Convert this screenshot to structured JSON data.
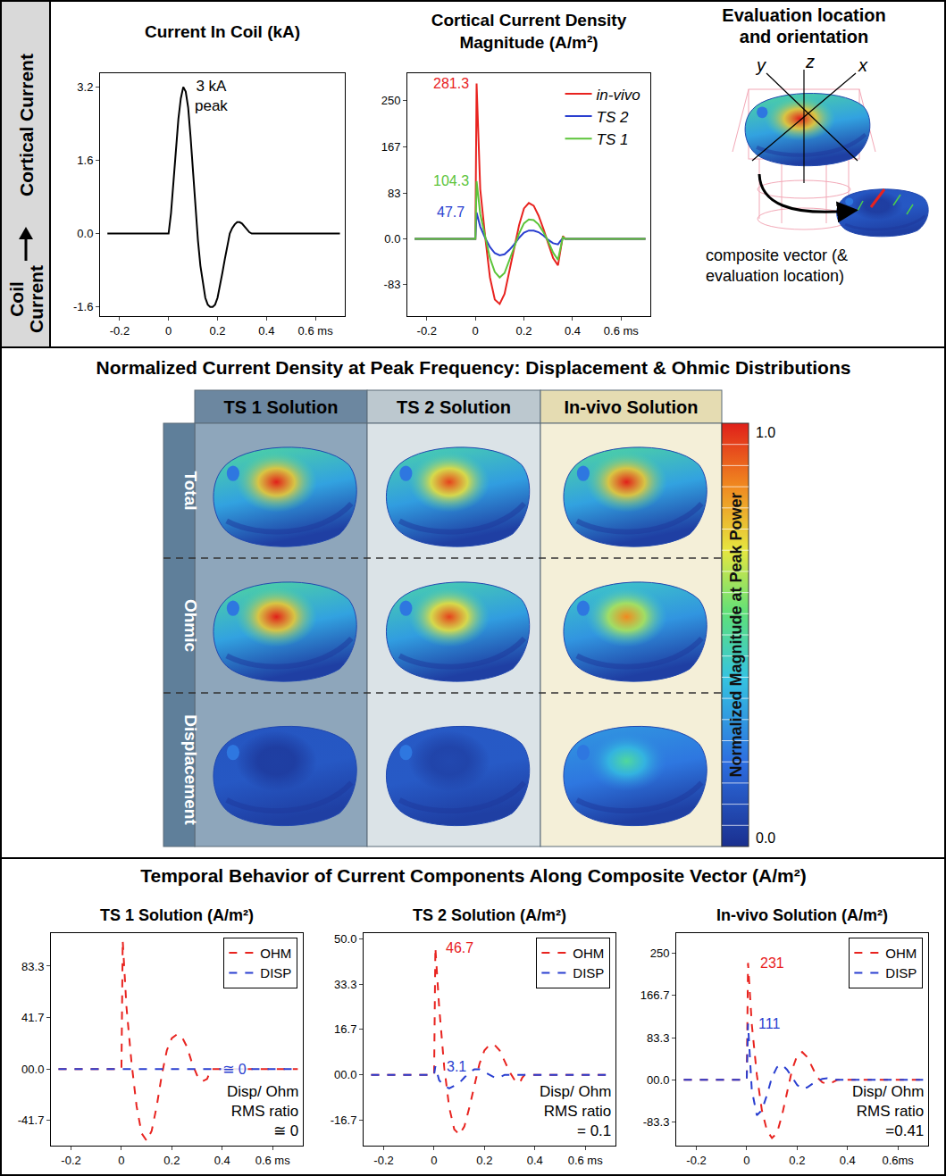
{
  "side_label": {
    "bottom": "Coil Current",
    "top": "Cortical Current"
  },
  "chart_data": [
    {
      "type": "line",
      "title": "Current In Coil (kA)",
      "x": [
        -0.25,
        0,
        0.01,
        0.02,
        0.03,
        0.04,
        0.05,
        0.06,
        0.07,
        0.08,
        0.09,
        0.1,
        0.11,
        0.12,
        0.13,
        0.14,
        0.15,
        0.16,
        0.17,
        0.18,
        0.19,
        0.2,
        0.21,
        0.22,
        0.23,
        0.24,
        0.25,
        0.26,
        0.27,
        0.28,
        0.29,
        0.3,
        0.31,
        0.32,
        0.33,
        0.34,
        0.7
      ],
      "values": [
        0,
        0,
        0.45,
        1.1,
        1.8,
        2.5,
        2.95,
        3.2,
        3.1,
        2.75,
        2.1,
        1.3,
        0.55,
        -0.15,
        -0.7,
        -1.1,
        -1.4,
        -1.55,
        -1.6,
        -1.6,
        -1.55,
        -1.4,
        -1.15,
        -0.85,
        -0.55,
        -0.25,
        0.0,
        0.12,
        0.2,
        0.25,
        0.25,
        0.22,
        0.15,
        0.08,
        0.03,
        0,
        0
      ],
      "color": "#000000",
      "xlim": [
        -0.28,
        0.72
      ],
      "ylim": [
        -1.8,
        3.5
      ],
      "xticks": [
        -0.2,
        0,
        0.2,
        0.4,
        {
          "value": 0.6,
          "label": "0.6 ms"
        }
      ],
      "yticks": [
        -1.6,
        {
          "value": 0,
          "label": "0.0"
        },
        1.6,
        3.2
      ],
      "annotations": [
        {
          "text": "3 kA peak",
          "x": 0.1,
          "y": 3,
          "color": "#000000"
        }
      ]
    },
    {
      "type": "line",
      "title": "Cortical Current Density Magnitude (A/m²)",
      "x": [
        -0.25,
        0,
        0.005,
        0.02,
        0.04,
        0.06,
        0.08,
        0.1,
        0.12,
        0.14,
        0.16,
        0.18,
        0.2,
        0.22,
        0.24,
        0.26,
        0.28,
        0.3,
        0.32,
        0.34,
        0.35,
        0.36,
        0.37,
        0.7
      ],
      "series": [
        {
          "name": "in-vivo",
          "color": "#e8231f",
          "line_style": "solid",
          "values": [
            0,
            0,
            281.3,
            90,
            5,
            -70,
            -110,
            -118,
            -100,
            -60,
            -15,
            25,
            55,
            65,
            60,
            42,
            18,
            -10,
            -35,
            -48,
            -20,
            5,
            0,
            0
          ]
        },
        {
          "name": "TS 2",
          "color": "#2a3fd0",
          "line_style": "solid",
          "values": [
            0,
            0,
            47.7,
            22,
            2,
            -15,
            -26,
            -30,
            -28,
            -20,
            -10,
            2,
            11,
            15,
            15,
            12,
            6,
            -2,
            -8,
            -10,
            -4,
            1,
            0,
            0
          ]
        },
        {
          "name": "TS 1",
          "color": "#5cc43a",
          "line_style": "solid",
          "values": [
            0,
            0,
            104.3,
            45,
            5,
            -35,
            -60,
            -70,
            -62,
            -40,
            -15,
            10,
            28,
            35,
            34,
            26,
            12,
            -5,
            -25,
            -38,
            -15,
            3,
            0,
            0
          ]
        }
      ],
      "legend": "top right",
      "xlim": [
        -0.28,
        0.72
      ],
      "ylim": [
        -140,
        300
      ],
      "xticks": [
        -0.2,
        0,
        0.2,
        0.4,
        {
          "value": 0.6,
          "label": "0.6 ms"
        }
      ],
      "yticks": [
        -83,
        {
          "value": 0,
          "label": "0.0"
        },
        83,
        167,
        250
      ],
      "annotations": [
        {
          "text": "281.3",
          "x": -0.1,
          "y": 281.3,
          "color": "#e8231f"
        },
        {
          "text": "104.3",
          "x": -0.1,
          "y": 104.3,
          "color": "#5cc43a"
        },
        {
          "text": "47.7",
          "x": -0.1,
          "y": 47.7,
          "color": "#2a3fd0"
        }
      ]
    },
    {
      "type": "line",
      "title": "TS 1 Solution (A/m²)",
      "x": [
        -0.25,
        0,
        0.005,
        0.02,
        0.04,
        0.06,
        0.08,
        0.1,
        0.12,
        0.14,
        0.16,
        0.18,
        0.2,
        0.22,
        0.24,
        0.26,
        0.28,
        0.3,
        0.32,
        0.34,
        0.35,
        0.36,
        0.37,
        0.7
      ],
      "series": [
        {
          "name": "OHM",
          "color": "#e8231f",
          "line_style": "dash",
          "values": [
            0,
            0,
            104,
            50,
            5,
            -30,
            -52,
            -58,
            -50,
            -30,
            -5,
            15,
            25,
            28,
            26,
            18,
            5,
            -5,
            -10,
            -8,
            -3,
            0,
            0,
            0
          ]
        },
        {
          "name": "DISP",
          "color": "#2a3fd0",
          "line_style": "dash",
          "values": [
            0,
            0,
            0,
            0,
            0,
            0,
            0,
            0,
            0,
            0,
            0,
            0,
            0,
            0,
            0,
            0,
            0,
            0,
            0,
            0,
            0,
            0,
            0,
            0
          ]
        }
      ],
      "legend": "top right",
      "xlim": [
        -0.28,
        0.72
      ],
      "ylim": [
        -62,
        110
      ],
      "xticks": [
        -0.2,
        0,
        0.2,
        0.4,
        {
          "value": 0.6,
          "label": "0.6 ms"
        }
      ],
      "yticks": [
        -41.7,
        {
          "value": 0,
          "label": "00.0"
        },
        41.7,
        83.3
      ],
      "annotations": [
        {
          "text": "≅ 0",
          "x": 0.45,
          "y": 0,
          "color": "#2a3fd0"
        }
      ],
      "ratio": {
        "label": "Disp/ Ohm RMS ratio",
        "value": "≅ 0"
      }
    },
    {
      "type": "line",
      "title": "TS 2 Solution (A/m²)",
      "x": [
        -0.25,
        0,
        0.005,
        0.02,
        0.04,
        0.06,
        0.08,
        0.1,
        0.12,
        0.14,
        0.16,
        0.18,
        0.2,
        0.22,
        0.24,
        0.26,
        0.28,
        0.3,
        0.32,
        0.34,
        0.35,
        0.36,
        0.37,
        0.7
      ],
      "series": [
        {
          "name": "OHM",
          "color": "#e8231f",
          "line_style": "dash",
          "values": [
            0,
            0,
            46.7,
            25,
            3,
            -12,
            -20,
            -22,
            -19,
            -12,
            -4,
            4,
            9,
            11,
            11,
            9,
            5,
            1,
            -2,
            -3,
            -1,
            0,
            0,
            0
          ]
        },
        {
          "name": "DISP",
          "color": "#2a3fd0",
          "line_style": "dash",
          "values": [
            0,
            0,
            3.1,
            -2,
            -4,
            -5,
            -4,
            -3,
            -1,
            1,
            2,
            2,
            1,
            0,
            -1,
            -1,
            0,
            0,
            0,
            0,
            0,
            0,
            0,
            0
          ]
        }
      ],
      "legend": "top right",
      "xlim": [
        -0.28,
        0.72
      ],
      "ylim": [
        -26,
        52
      ],
      "xticks": [
        -0.2,
        0,
        0.2,
        0.4,
        {
          "value": 0.6,
          "label": "0.6 ms"
        }
      ],
      "yticks": [
        -16.7,
        {
          "value": 0,
          "label": "00.0"
        },
        16.7,
        33.3,
        {
          "value": 50,
          "label": "50.0"
        }
      ],
      "annotations": [
        {
          "text": "46.7",
          "x": 0.1,
          "y": 46.7,
          "color": "#e8231f"
        },
        {
          "text": "3.1",
          "x": 0.09,
          "y": 3.1,
          "color": "#2a3fd0"
        }
      ],
      "ratio": {
        "label": "Disp/ Ohm RMS ratio",
        "value": "= 0.1"
      }
    },
    {
      "type": "line",
      "title": "In-vivo Solution (A/m²)",
      "x": [
        -0.25,
        0,
        0.005,
        0.02,
        0.04,
        0.06,
        0.08,
        0.1,
        0.12,
        0.14,
        0.16,
        0.18,
        0.2,
        0.22,
        0.24,
        0.26,
        0.28,
        0.3,
        0.32,
        0.34,
        0.35,
        0.36,
        0.37,
        0.7
      ],
      "series": [
        {
          "name": "OHM",
          "color": "#e8231f",
          "line_style": "dash",
          "values": [
            0,
            0,
            231,
            110,
            10,
            -60,
            -100,
            -115,
            -105,
            -70,
            -25,
            20,
            48,
            55,
            45,
            25,
            5,
            -5,
            -8,
            -5,
            -2,
            0,
            0,
            0
          ]
        },
        {
          "name": "DISP",
          "color": "#2a3fd0",
          "line_style": "dash",
          "values": [
            0,
            0,
            111,
            -20,
            -70,
            -60,
            -30,
            5,
            25,
            30,
            20,
            5,
            -10,
            -18,
            -15,
            -8,
            -2,
            2,
            3,
            1,
            0,
            0,
            0,
            0
          ]
        }
      ],
      "legend": "top right",
      "xlim": [
        -0.28,
        0.72
      ],
      "ylim": [
        -130,
        290
      ],
      "xticks": [
        -0.2,
        0,
        0.2,
        0.4,
        {
          "value": 0.6,
          "label": "0.6ms"
        }
      ],
      "yticks": [
        -83.3,
        {
          "value": 0,
          "label": "00.0"
        },
        83.3,
        166.7,
        250
      ],
      "annotations": [
        {
          "text": "231",
          "x": 0.1,
          "y": 231,
          "color": "#e8231f"
        },
        {
          "text": "111",
          "x": 0.09,
          "y": 111,
          "color": "#2a3fd0"
        }
      ],
      "ratio": {
        "label": "Disp/ Ohm RMS ratio",
        "value": "=0.41"
      }
    }
  ],
  "diagram": {
    "title": "Evaluation location and orientation",
    "axes": [
      "y",
      "z",
      "x"
    ],
    "callout": "composite vector (& evaluation location)"
  },
  "maps": {
    "title": "Normalized Current Density at Peak Frequency: Displacement & Ohmic Distributions",
    "columns": [
      "TS 1 Solution",
      "TS 2 Solution",
      "In-vivo Solution"
    ],
    "rows": [
      {
        "label": "Total",
        "levels": [
          1.0,
          0.95,
          1.0
        ]
      },
      {
        "label": "Ohmic",
        "levels": [
          1.0,
          0.95,
          0.85
        ]
      },
      {
        "label": "Displacement",
        "levels": [
          0.05,
          0.08,
          0.5
        ]
      }
    ],
    "colorbar": {
      "label": "Normalized Magnitude at Peak Power",
      "range": [
        0,
        1
      ],
      "ticks": [
        {
          "value": 1,
          "label": "1.0"
        },
        {
          "value": 0,
          "label": "0.0"
        }
      ]
    }
  },
  "bottom_title": "Temporal Behavior of Current Components Along Composite Vector (A/m²)"
}
